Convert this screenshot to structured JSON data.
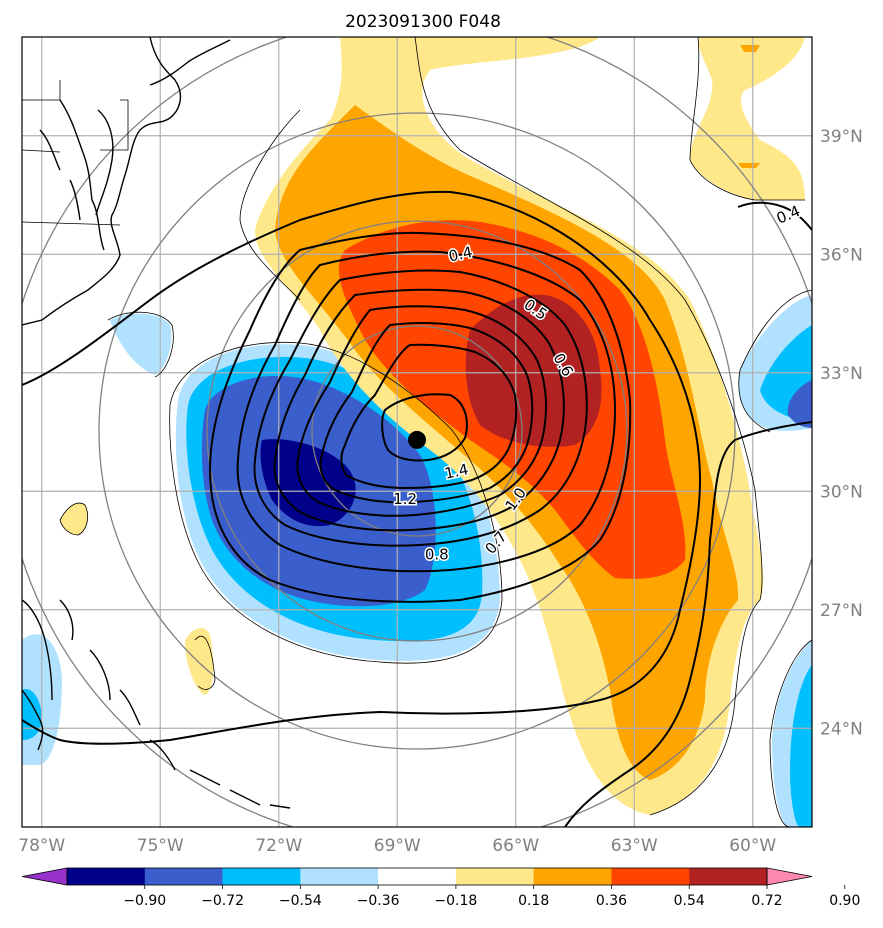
{
  "title": "2023091300 F048",
  "map": {
    "lon_range": [
      -78.5,
      -58.5
    ],
    "lat_range": [
      21.5,
      41.5
    ],
    "lon_ticks": [
      {
        "value": -78,
        "label": "78°W"
      },
      {
        "value": -75,
        "label": "75°W"
      },
      {
        "value": -72,
        "label": "72°W"
      },
      {
        "value": -69,
        "label": "69°W"
      },
      {
        "value": -66,
        "label": "66°W"
      },
      {
        "value": -63,
        "label": "63°W"
      },
      {
        "value": -60,
        "label": "60°W"
      }
    ],
    "lat_ticks": [
      {
        "value": 39,
        "label": "39°N"
      },
      {
        "value": 36,
        "label": "36°N"
      },
      {
        "value": 33,
        "label": "33°N"
      },
      {
        "value": 30,
        "label": "30°N"
      },
      {
        "value": 27,
        "label": "27°N"
      },
      {
        "value": 24,
        "label": "24°N"
      }
    ],
    "storm_center": {
      "lon": -68.5,
      "lat": 31.3
    },
    "gridlines": true,
    "range_rings": true
  },
  "colorbar": {
    "levels": [
      "-0.90",
      "-0.72",
      "-0.54",
      "-0.36",
      "-0.18",
      "0.18",
      "0.36",
      "0.54",
      "0.72",
      "0.90"
    ],
    "colors": [
      "#9932cc",
      "#00008b",
      "#3a5fcd",
      "#00bfff",
      "#b0e2ff",
      "#ffffff",
      "#ffe88a",
      "#ffa500",
      "#ff4500",
      "#b22222",
      "#ff88b0"
    ],
    "extend": "both"
  },
  "contour_labels": [
    {
      "text": "0.4",
      "lon": -67.4,
      "lat": 36.0,
      "rot": -12
    },
    {
      "text": "0.4",
      "lon": -59.1,
      "lat": 37.0,
      "rot": -22
    },
    {
      "text": "0.5",
      "lon": -65.5,
      "lat": 34.6,
      "rot": 35
    },
    {
      "text": "0.6",
      "lon": -64.8,
      "lat": 33.2,
      "rot": 60
    },
    {
      "text": "1.4",
      "lon": -67.5,
      "lat": 30.5,
      "rot": -12
    },
    {
      "text": "1.2",
      "lon": -68.8,
      "lat": 29.8,
      "rot": 0
    },
    {
      "text": "1.0",
      "lon": -66.0,
      "lat": 29.8,
      "rot": -55
    },
    {
      "text": "0.8",
      "lon": -68.0,
      "lat": 28.4,
      "rot": 0
    },
    {
      "text": "0.7",
      "lon": -66.5,
      "lat": 28.7,
      "rot": -50
    }
  ]
}
